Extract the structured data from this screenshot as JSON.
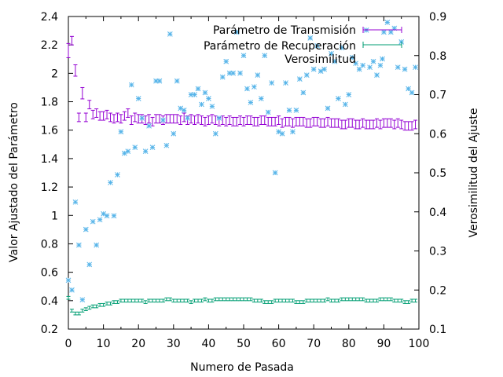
{
  "chart_data": {
    "type": "scatter",
    "title": "",
    "xlabel": "Numero de Pasada",
    "ylabel": "Valor Ajustado del Parámetro",
    "y2label": "Verosimilitud del Ajuste",
    "xlim": [
      0,
      100
    ],
    "ylim": [
      0.2,
      2.4
    ],
    "y2lim": [
      0.1,
      0.9
    ],
    "xticks": [
      "0",
      "10",
      "20",
      "30",
      "40",
      "50",
      "60",
      "70",
      "80",
      "90",
      "100"
    ],
    "yticks": [
      "0.2",
      "0.4",
      "0.6",
      "0.8",
      "1",
      "1.2",
      "1.4",
      "1.6",
      "1.8",
      "2",
      "2.2",
      "2.4"
    ],
    "y2ticks": [
      "0.1",
      "0.2",
      "0.3",
      "0.4",
      "0.5",
      "0.6",
      "0.7",
      "0.8",
      "0.9"
    ],
    "legend_position": "top-right",
    "series": [
      {
        "name": "Parámetro de Transmisión",
        "axis": "y1",
        "style": "errorbars",
        "color": "#9400d3",
        "x": [
          0,
          1,
          2,
          3,
          4,
          5,
          6,
          7,
          8,
          9,
          10,
          11,
          12,
          13,
          14,
          15,
          16,
          17,
          18,
          19,
          20,
          21,
          22,
          23,
          24,
          25,
          26,
          27,
          28,
          29,
          30,
          31,
          32,
          33,
          34,
          35,
          36,
          37,
          38,
          39,
          40,
          41,
          42,
          43,
          44,
          45,
          46,
          47,
          48,
          49,
          50,
          51,
          52,
          53,
          54,
          55,
          56,
          57,
          58,
          59,
          60,
          61,
          62,
          63,
          64,
          65,
          66,
          67,
          68,
          69,
          70,
          71,
          72,
          73,
          74,
          75,
          76,
          77,
          78,
          79,
          80,
          81,
          82,
          83,
          84,
          85,
          86,
          87,
          88,
          89,
          90,
          91,
          92,
          93,
          94,
          95,
          96,
          97,
          98,
          99
        ],
        "y": [
          2.16,
          2.23,
          2.02,
          1.69,
          1.86,
          1.69,
          1.78,
          1.71,
          1.72,
          1.7,
          1.7,
          1.71,
          1.69,
          1.68,
          1.69,
          1.68,
          1.7,
          1.72,
          1.67,
          1.69,
          1.68,
          1.68,
          1.67,
          1.68,
          1.66,
          1.68,
          1.68,
          1.67,
          1.68,
          1.68,
          1.68,
          1.68,
          1.67,
          1.69,
          1.67,
          1.68,
          1.67,
          1.68,
          1.67,
          1.66,
          1.67,
          1.68,
          1.67,
          1.66,
          1.67,
          1.66,
          1.67,
          1.66,
          1.66,
          1.67,
          1.66,
          1.67,
          1.67,
          1.66,
          1.66,
          1.67,
          1.67,
          1.66,
          1.66,
          1.66,
          1.67,
          1.65,
          1.66,
          1.66,
          1.65,
          1.66,
          1.66,
          1.66,
          1.65,
          1.65,
          1.66,
          1.66,
          1.65,
          1.65,
          1.66,
          1.65,
          1.65,
          1.65,
          1.64,
          1.64,
          1.65,
          1.65,
          1.64,
          1.64,
          1.65,
          1.64,
          1.64,
          1.64,
          1.65,
          1.64,
          1.65,
          1.65,
          1.65,
          1.64,
          1.65,
          1.64,
          1.63,
          1.63,
          1.63,
          1.64
        ],
        "error": [
          0.05,
          0.03,
          0.04,
          0.03,
          0.04,
          0.03,
          0.03,
          0.03,
          0.03,
          0.03,
          0.03,
          0.03,
          0.03,
          0.03,
          0.03,
          0.03,
          0.03,
          0.03,
          0.03,
          0.03,
          0.03,
          0.03,
          0.03,
          0.03,
          0.03,
          0.03,
          0.03,
          0.03,
          0.03,
          0.03,
          0.03,
          0.03,
          0.03,
          0.03,
          0.03,
          0.03,
          0.03,
          0.03,
          0.03,
          0.03,
          0.03,
          0.03,
          0.03,
          0.03,
          0.03,
          0.03,
          0.03,
          0.03,
          0.03,
          0.03,
          0.03,
          0.03,
          0.03,
          0.03,
          0.03,
          0.03,
          0.03,
          0.03,
          0.03,
          0.03,
          0.03,
          0.03,
          0.03,
          0.03,
          0.03,
          0.03,
          0.03,
          0.03,
          0.03,
          0.03,
          0.03,
          0.03,
          0.03,
          0.03,
          0.03,
          0.03,
          0.03,
          0.03,
          0.03,
          0.03,
          0.03,
          0.03,
          0.03,
          0.03,
          0.03,
          0.03,
          0.03,
          0.03,
          0.03,
          0.03,
          0.03,
          0.03,
          0.03,
          0.03,
          0.03,
          0.03,
          0.03,
          0.03,
          0.03,
          0.03
        ]
      },
      {
        "name": "Parámetro de Recuperación",
        "axis": "y1",
        "style": "errorbars",
        "color": "#009e73",
        "x": [
          0,
          1,
          2,
          3,
          4,
          5,
          6,
          7,
          8,
          9,
          10,
          11,
          12,
          13,
          14,
          15,
          16,
          17,
          18,
          19,
          20,
          21,
          22,
          23,
          24,
          25,
          26,
          27,
          28,
          29,
          30,
          31,
          32,
          33,
          34,
          35,
          36,
          37,
          38,
          39,
          40,
          41,
          42,
          43,
          44,
          45,
          46,
          47,
          48,
          49,
          50,
          51,
          52,
          53,
          54,
          55,
          56,
          57,
          58,
          59,
          60,
          61,
          62,
          63,
          64,
          65,
          66,
          67,
          68,
          69,
          70,
          71,
          72,
          73,
          74,
          75,
          76,
          77,
          78,
          79,
          80,
          81,
          82,
          83,
          84,
          85,
          86,
          87,
          88,
          89,
          90,
          91,
          92,
          93,
          94,
          95,
          96,
          97,
          98,
          99
        ],
        "y": [
          0.42,
          0.33,
          0.31,
          0.31,
          0.33,
          0.34,
          0.35,
          0.36,
          0.36,
          0.37,
          0.37,
          0.38,
          0.38,
          0.39,
          0.39,
          0.4,
          0.4,
          0.4,
          0.4,
          0.4,
          0.4,
          0.4,
          0.39,
          0.4,
          0.4,
          0.4,
          0.4,
          0.4,
          0.41,
          0.41,
          0.4,
          0.4,
          0.4,
          0.4,
          0.4,
          0.39,
          0.4,
          0.4,
          0.4,
          0.41,
          0.4,
          0.4,
          0.41,
          0.41,
          0.41,
          0.41,
          0.41,
          0.41,
          0.41,
          0.41,
          0.41,
          0.41,
          0.41,
          0.4,
          0.4,
          0.4,
          0.39,
          0.39,
          0.39,
          0.4,
          0.4,
          0.4,
          0.4,
          0.4,
          0.4,
          0.39,
          0.39,
          0.39,
          0.4,
          0.4,
          0.4,
          0.4,
          0.4,
          0.4,
          0.41,
          0.4,
          0.4,
          0.4,
          0.41,
          0.41,
          0.41,
          0.41,
          0.41,
          0.41,
          0.41,
          0.4,
          0.4,
          0.4,
          0.4,
          0.41,
          0.41,
          0.41,
          0.41,
          0.4,
          0.4,
          0.4,
          0.39,
          0.39,
          0.4,
          0.4
        ],
        "error": [
          0.01,
          0.01,
          0.01,
          0.01,
          0.01,
          0.01,
          0.01,
          0.01,
          0.01,
          0.01,
          0.01,
          0.01,
          0.01,
          0.01,
          0.01,
          0.01,
          0.01,
          0.01,
          0.01,
          0.01,
          0.01,
          0.01,
          0.01,
          0.01,
          0.01,
          0.01,
          0.01,
          0.01,
          0.01,
          0.01,
          0.01,
          0.01,
          0.01,
          0.01,
          0.01,
          0.01,
          0.01,
          0.01,
          0.01,
          0.01,
          0.01,
          0.01,
          0.01,
          0.01,
          0.01,
          0.01,
          0.01,
          0.01,
          0.01,
          0.01,
          0.01,
          0.01,
          0.01,
          0.01,
          0.01,
          0.01,
          0.01,
          0.01,
          0.01,
          0.01,
          0.01,
          0.01,
          0.01,
          0.01,
          0.01,
          0.01,
          0.01,
          0.01,
          0.01,
          0.01,
          0.01,
          0.01,
          0.01,
          0.01,
          0.01,
          0.01,
          0.01,
          0.01,
          0.01,
          0.01,
          0.01,
          0.01,
          0.01,
          0.01,
          0.01,
          0.01,
          0.01,
          0.01,
          0.01,
          0.01,
          0.01,
          0.01,
          0.01,
          0.01,
          0.01,
          0.01,
          0.01,
          0.01,
          0.01,
          0.01
        ]
      },
      {
        "name": "Verosimilitud",
        "axis": "y2",
        "style": "points",
        "color": "#56b4e9",
        "x": [
          0,
          1,
          2,
          3,
          4,
          5,
          6,
          7,
          8,
          9,
          10,
          11,
          12,
          13,
          14,
          15,
          16,
          17,
          18,
          19,
          20,
          21,
          22,
          23,
          24,
          25,
          26,
          27,
          28,
          29,
          30,
          31,
          32,
          33,
          34,
          35,
          36,
          37,
          38,
          39,
          40,
          41,
          42,
          43,
          44,
          45,
          46,
          47,
          48,
          49,
          50,
          51,
          52,
          53,
          54,
          55,
          56,
          57,
          58,
          59,
          60,
          61,
          62,
          63,
          64,
          65,
          66,
          67,
          68,
          69,
          70,
          71,
          72,
          73,
          74,
          75,
          76,
          77,
          78,
          79,
          80,
          81,
          82,
          83,
          84,
          85,
          86,
          87,
          88,
          89,
          90,
          91,
          92,
          93,
          94,
          95,
          96,
          97,
          98,
          99
        ],
        "y": [
          0.225,
          0.2,
          0.425,
          0.315,
          0.175,
          0.355,
          0.265,
          0.375,
          0.315,
          0.38,
          0.395,
          0.39,
          0.475,
          0.39,
          0.495,
          0.605,
          0.55,
          0.555,
          0.725,
          0.565,
          0.69,
          0.64,
          0.555,
          0.62,
          0.565,
          0.735,
          0.735,
          0.635,
          0.57,
          0.855,
          0.6,
          0.735,
          0.665,
          0.66,
          0.64,
          0.7,
          0.7,
          0.715,
          0.675,
          0.705,
          0.69,
          0.67,
          0.6,
          0.64,
          0.745,
          0.785,
          0.755,
          0.755,
          0.86,
          0.755,
          0.8,
          0.715,
          0.68,
          0.72,
          0.75,
          0.69,
          0.8,
          0.655,
          0.73,
          0.5,
          0.605,
          0.6,
          0.73,
          0.66,
          0.605,
          0.66,
          0.74,
          0.705,
          0.75,
          0.845,
          0.765,
          0.825,
          0.76,
          0.765,
          0.665,
          0.805,
          0.785,
          0.69,
          0.82,
          0.675,
          0.7,
          0.795,
          0.78,
          0.765,
          0.775,
          0.865,
          0.77,
          0.785,
          0.75,
          0.775,
          0.86,
          0.885,
          0.86,
          0.87,
          0.77,
          0.835,
          0.765,
          0.715,
          0.705,
          0.77
        ]
      }
    ]
  }
}
